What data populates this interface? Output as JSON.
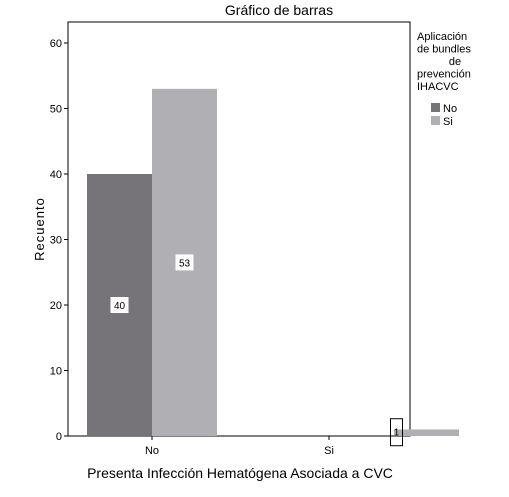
{
  "chart_data": {
    "type": "bar",
    "title": "Gráfico de barras",
    "xlabel": "Presenta Infección Hematógena Asociada a CVC",
    "ylabel": "Recuento",
    "categories": [
      "No",
      "Si"
    ],
    "series": [
      {
        "name": "No",
        "color": "#767478",
        "values": [
          40,
          0
        ],
        "labels": [
          "40",
          ""
        ]
      },
      {
        "name": "Si",
        "color": "#b0afb3",
        "values": [
          53,
          1
        ],
        "labels": [
          "53",
          "1"
        ]
      }
    ],
    "ylim": [
      0,
      63
    ],
    "yticks": [
      "0",
      "10",
      "20",
      "30",
      "40",
      "50",
      "60"
    ],
    "grid": false,
    "legend": {
      "title_lines": [
        "Aplicación",
        "de bundles",
        "de",
        "prevención",
        "IHACVC"
      ],
      "placement": "right"
    }
  }
}
